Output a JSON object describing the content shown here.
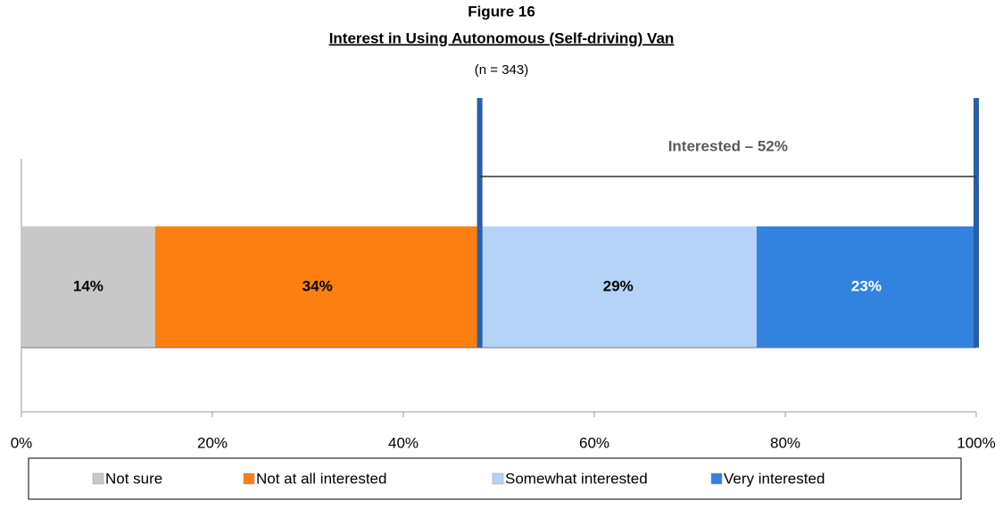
{
  "chart_data": {
    "type": "stacked-bar",
    "title": "Figure 16",
    "subtitle": "Interest in Using Autonomous (Self-driving) Van",
    "note": "(n = 343)",
    "annotation": "Interested – 52%",
    "orientation": "horizontal",
    "categories": [
      null
    ],
    "series": [
      {
        "name": "Not sure",
        "color": "#c8c8c8",
        "values": [
          14
        ],
        "value_labels": [
          "14%"
        ]
      },
      {
        "name": "Not at all interested",
        "color": "#fd7f11",
        "values": [
          34
        ],
        "value_labels": [
          "34%"
        ]
      },
      {
        "name": "Somewhat interested",
        "color": "#b5d3f7",
        "values": [
          29
        ],
        "value_labels": [
          "29%"
        ]
      },
      {
        "name": "Very interested",
        "color": "#3282e0",
        "values": [
          23
        ],
        "value_labels": [
          "23%"
        ]
      }
    ],
    "xlim": [
      0,
      100
    ],
    "xticks": [
      {
        "value": 0,
        "label": "0%"
      },
      {
        "value": 20,
        "label": "20%"
      },
      {
        "value": 40,
        "label": "40%"
      },
      {
        "value": 60,
        "label": "60%"
      },
      {
        "value": 80,
        "label": "80%"
      },
      {
        "value": 100,
        "label": "100%"
      }
    ],
    "grid": false,
    "legend": "bottom"
  }
}
